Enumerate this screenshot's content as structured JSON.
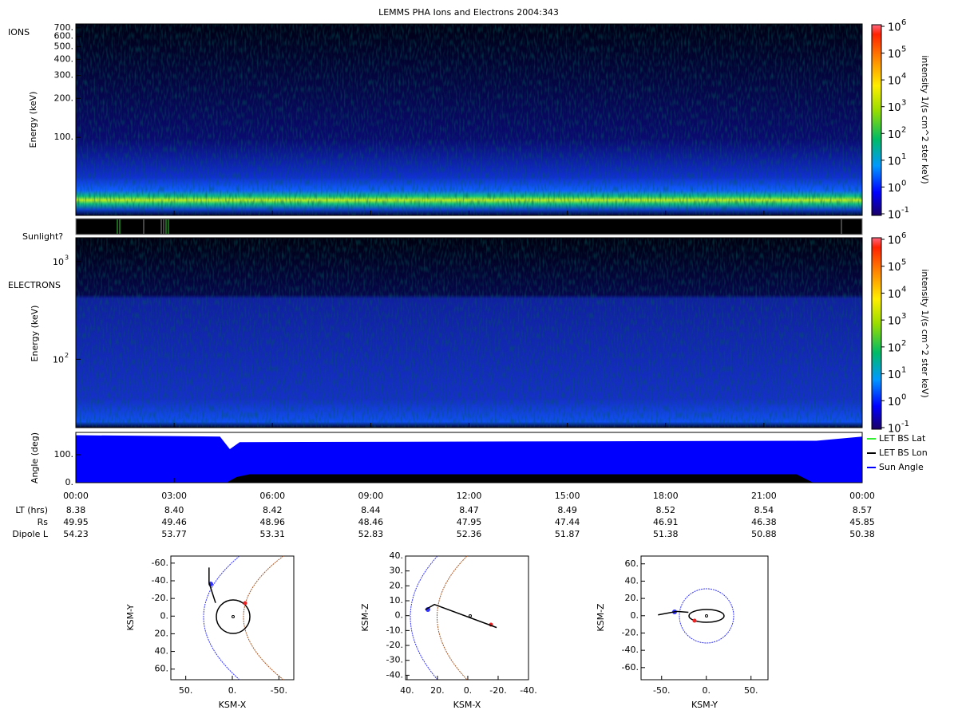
{
  "title": "LEMMS PHA Ions and Electrons  2004:343",
  "ions": {
    "label": "IONS",
    "ylabel": "Energy (keV)",
    "ylim": [
      25,
      750
    ],
    "yticks": [
      {
        "value": 100,
        "label": "100."
      },
      {
        "value": 200,
        "label": "200."
      },
      {
        "value": 300,
        "label": "300."
      },
      {
        "value": 400,
        "label": "400."
      },
      {
        "value": 500,
        "label": "500."
      },
      {
        "value": 600,
        "label": "600."
      },
      {
        "value": 700,
        "label": "700."
      }
    ]
  },
  "sunlight_label": "Sunlight?",
  "electrons": {
    "label": "ELECTRONS",
    "ylabel": "Energy (keV)",
    "ylim": [
      20,
      1750
    ],
    "tick_base": "10",
    "yticks": [
      2,
      3
    ]
  },
  "colorbar": {
    "label": "intensity 1/(s cm^2 ster keV)",
    "base": "10",
    "ticks": [
      -1,
      0,
      1,
      2,
      3,
      4,
      5,
      6
    ]
  },
  "angle": {
    "ylabel": "Angle (deg)",
    "ylim": [
      0,
      180
    ],
    "yticks": [
      {
        "value": 0,
        "label": "0."
      },
      {
        "value": 100,
        "label": "100."
      }
    ],
    "legend": [
      {
        "name": "LET BS Lat",
        "color": "#33ee33"
      },
      {
        "name": "LET BS Lon",
        "color": "#000000"
      },
      {
        "name": "Sun Angle",
        "color": "#0000ff"
      }
    ],
    "series": [
      {
        "name": "Sun Angle",
        "color": "#0000ff",
        "x": [
          0,
          4.4,
          4.7,
          5.0,
          22.2,
          22.6,
          24
        ],
        "values": [
          170,
          165,
          120,
          145,
          150,
          150,
          165
        ]
      },
      {
        "name": "LET BS Lon",
        "color": "#000000",
        "x": [
          0,
          4.6,
          4.9,
          5.3,
          22.0,
          22.5,
          24
        ],
        "values": [
          0,
          0,
          20,
          30,
          30,
          0,
          0
        ]
      }
    ]
  },
  "xlim": [
    0,
    24
  ],
  "xticks": [
    {
      "value": 0,
      "label": "00:00"
    },
    {
      "value": 3,
      "label": "03:00"
    },
    {
      "value": 6,
      "label": "06:00"
    },
    {
      "value": 9,
      "label": "09:00"
    },
    {
      "value": 12,
      "label": "12:00"
    },
    {
      "value": 15,
      "label": "15:00"
    },
    {
      "value": 18,
      "label": "18:00"
    },
    {
      "value": 21,
      "label": "21:00"
    },
    {
      "value": 24,
      "label": "00:00"
    }
  ],
  "ephemeris": [
    {
      "label": "LT (hrs)",
      "values": [
        "8.38",
        "8.40",
        "8.42",
        "8.44",
        "8.47",
        "8.49",
        "8.52",
        "8.54",
        "8.57"
      ]
    },
    {
      "label": "Rs",
      "values": [
        "49.95",
        "49.46",
        "48.96",
        "48.46",
        "47.95",
        "47.44",
        "46.91",
        "46.38",
        "45.85"
      ]
    },
    {
      "label": "Dipole L",
      "values": [
        "54.23",
        "53.77",
        "53.31",
        "52.83",
        "52.36",
        "51.87",
        "51.38",
        "50.88",
        "50.38"
      ]
    }
  ],
  "orbits": [
    {
      "xlabel": "KSM-X",
      "ylabel": "KSM-Y",
      "xlim": [
        66,
        -66
      ],
      "ylim": [
        -68,
        72
      ],
      "xticks": [
        {
          "value": 50,
          "label": "50."
        },
        {
          "value": 0,
          "label": "0."
        },
        {
          "value": -50,
          "label": "-50."
        }
      ],
      "yticks": [
        {
          "value": -60,
          "label": "-60."
        },
        {
          "value": -40,
          "label": "-40."
        },
        {
          "value": -20,
          "label": "-20."
        },
        {
          "value": 0,
          "label": "0."
        },
        {
          "value": 20,
          "label": "20."
        },
        {
          "value": 40,
          "label": "40."
        },
        {
          "value": 60,
          "label": "60."
        }
      ],
      "x": [
        25,
        25,
        22,
        18
      ],
      "y": [
        -55,
        -38,
        -28,
        -15
      ]
    },
    {
      "xlabel": "KSM-X",
      "ylabel": "KSM-Z",
      "xlim": [
        41,
        -40
      ],
      "ylim": [
        40,
        -43
      ],
      "xticks": [
        {
          "value": 40,
          "label": "40."
        },
        {
          "value": 20,
          "label": "20."
        },
        {
          "value": 0,
          "label": "0."
        },
        {
          "value": -20,
          "label": "-20."
        },
        {
          "value": -40,
          "label": "-40."
        }
      ],
      "yticks": [
        {
          "value": 40,
          "label": "40."
        },
        {
          "value": 30,
          "label": "30."
        },
        {
          "value": 20,
          "label": "20."
        },
        {
          "value": 10,
          "label": "10."
        },
        {
          "value": 0,
          "label": "0."
        },
        {
          "value": -10,
          "label": "-10."
        },
        {
          "value": -20,
          "label": "-20."
        },
        {
          "value": -30,
          "label": "-30."
        },
        {
          "value": -40,
          "label": "-40."
        }
      ],
      "x": [
        28,
        22,
        -19
      ],
      "y": [
        4,
        7.5,
        -8
      ]
    },
    {
      "xlabel": "KSM-Y",
      "ylabel": "KSM-Z",
      "xlim": [
        -73,
        69
      ],
      "ylim": [
        69,
        -74
      ],
      "xticks": [
        {
          "value": -50,
          "label": "-50."
        },
        {
          "value": 0,
          "label": "0."
        },
        {
          "value": 50,
          "label": "50."
        }
      ],
      "yticks": [
        {
          "value": 60,
          "label": "60."
        },
        {
          "value": 40,
          "label": "40."
        },
        {
          "value": 20,
          "label": "20."
        },
        {
          "value": 0,
          "label": "0."
        },
        {
          "value": -20,
          "label": "-20."
        },
        {
          "value": -40,
          "label": "-40."
        },
        {
          "value": -60,
          "label": "-60."
        }
      ],
      "x": [
        -54,
        -33,
        -20
      ],
      "y": [
        1,
        5,
        4
      ]
    }
  ]
}
